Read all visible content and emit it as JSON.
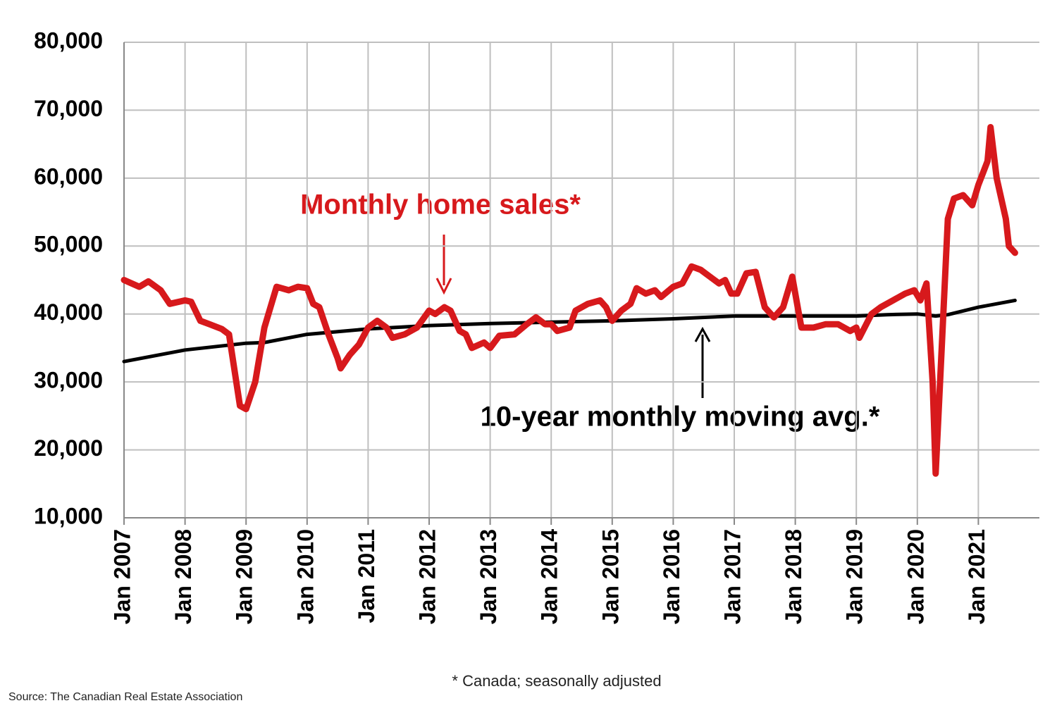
{
  "chart_data": {
    "type": "line",
    "annotations": [
      "Monthly home sales*",
      "10-year monthly moving avg.*"
    ],
    "footnote": "* Canada; seasonally adjusted",
    "source": "Source: The Canadian Real Estate Association",
    "xlim": [
      2007,
      2022
    ],
    "xticks": [
      {
        "value": 2007,
        "label": "Jan 2007"
      },
      {
        "value": 2008,
        "label": "Jan 2008"
      },
      {
        "value": 2009,
        "label": "Jan 2009"
      },
      {
        "value": 2010,
        "label": "Jan 2010"
      },
      {
        "value": 2011,
        "label": "Jan 2011"
      },
      {
        "value": 2012,
        "label": "Jan 2012"
      },
      {
        "value": 2013,
        "label": "Jan 2013"
      },
      {
        "value": 2014,
        "label": "Jan 2014"
      },
      {
        "value": 2015,
        "label": "Jan 2015"
      },
      {
        "value": 2016,
        "label": "Jan 2016"
      },
      {
        "value": 2017,
        "label": "Jan 2017"
      },
      {
        "value": 2018,
        "label": "Jan 2018"
      },
      {
        "value": 2019,
        "label": "Jan 2019"
      },
      {
        "value": 2020,
        "label": "Jan 2020"
      },
      {
        "value": 2021,
        "label": "Jan 2021"
      }
    ],
    "ylim": [
      10000,
      80000
    ],
    "yticks": [
      {
        "value": 10000,
        "label": "10,000"
      },
      {
        "value": 20000,
        "label": "20,000"
      },
      {
        "value": 30000,
        "label": "30,000"
      },
      {
        "value": 40000,
        "label": "40,000"
      },
      {
        "value": 50000,
        "label": "50,000"
      },
      {
        "value": 60000,
        "label": "60,000"
      },
      {
        "value": 70000,
        "label": "70,000"
      },
      {
        "value": 80000,
        "label": "80,000"
      }
    ],
    "grid": true,
    "series": [
      {
        "color": "#d7191c",
        "x": [
          2007.0,
          2007.25,
          2007.4,
          2007.6,
          2007.75,
          2008.0,
          2008.1,
          2008.25,
          2008.4,
          2008.6,
          2008.72,
          2008.9,
          2009.0,
          2009.15,
          2009.3,
          2009.5,
          2009.7,
          2009.85,
          2010.0,
          2010.1,
          2010.2,
          2010.35,
          2010.5,
          2010.55,
          2010.7,
          2010.85,
          2011.0,
          2011.15,
          2011.3,
          2011.4,
          2011.6,
          2011.8,
          2012.0,
          2012.1,
          2012.25,
          2012.35,
          2012.5,
          2012.6,
          2012.7,
          2012.9,
          2013.0,
          2013.15,
          2013.4,
          2013.6,
          2013.75,
          2013.9,
          2014.0,
          2014.1,
          2014.3,
          2014.4,
          2014.6,
          2014.8,
          2014.9,
          2015.0,
          2015.15,
          2015.3,
          2015.4,
          2015.55,
          2015.7,
          2015.8,
          2016.0,
          2016.15,
          2016.3,
          2016.45,
          2016.6,
          2016.75,
          2016.85,
          2016.95,
          2017.05,
          2017.2,
          2017.35,
          2017.5,
          2017.65,
          2017.8,
          2017.95,
          2018.05,
          2018.1,
          2018.3,
          2018.5,
          2018.7,
          2018.9,
          2019.0,
          2019.05,
          2019.25,
          2019.4,
          2019.6,
          2019.8,
          2019.95,
          2020.05,
          2020.15,
          2020.25,
          2020.3,
          2020.4,
          2020.5,
          2020.6,
          2020.75,
          2020.9,
          2021.0,
          2021.15,
          2021.2,
          2021.3,
          2021.45,
          2021.5,
          2021.6
        ],
        "values": [
          45000,
          44000,
          44800,
          43500,
          41500,
          42000,
          41800,
          39000,
          38500,
          37800,
          37000,
          26500,
          26000,
          30000,
          38000,
          44000,
          43500,
          44000,
          43800,
          41500,
          41000,
          37000,
          33500,
          32000,
          34000,
          35500,
          38000,
          39000,
          38000,
          36500,
          37000,
          38000,
          40500,
          40000,
          41000,
          40500,
          37500,
          37000,
          35000,
          35800,
          35000,
          36800,
          37000,
          38500,
          39500,
          38500,
          38500,
          37500,
          38000,
          40500,
          41500,
          42000,
          41000,
          39000,
          40500,
          41500,
          43800,
          43000,
          43500,
          42500,
          44000,
          44500,
          47000,
          46500,
          45500,
          44500,
          45000,
          43000,
          43000,
          46000,
          46200,
          41000,
          39500,
          41000,
          45500,
          40500,
          38000,
          38000,
          38500,
          38500,
          37500,
          38000,
          36500,
          40000,
          41000,
          42000,
          43000,
          43500,
          42000,
          44500,
          30000,
          16500,
          35000,
          54000,
          57000,
          57500,
          56000,
          59000,
          62500,
          67500,
          60000,
          54000,
          50000,
          49000
        ]
      },
      {
        "color": "#000000",
        "x": [
          2007.0,
          2008.0,
          2009.0,
          2009.3,
          2010.0,
          2011.0,
          2012.0,
          2013.0,
          2014.0,
          2015.0,
          2016.0,
          2017.0,
          2018.0,
          2019.0,
          2019.5,
          2020.0,
          2020.3,
          2020.5,
          2021.0,
          2021.6
        ],
        "values": [
          33000,
          34700,
          35700,
          35800,
          37000,
          37800,
          38300,
          38600,
          38800,
          39000,
          39300,
          39700,
          39700,
          39700,
          39900,
          40000,
          39700,
          39900,
          41000,
          42000
        ]
      }
    ]
  }
}
